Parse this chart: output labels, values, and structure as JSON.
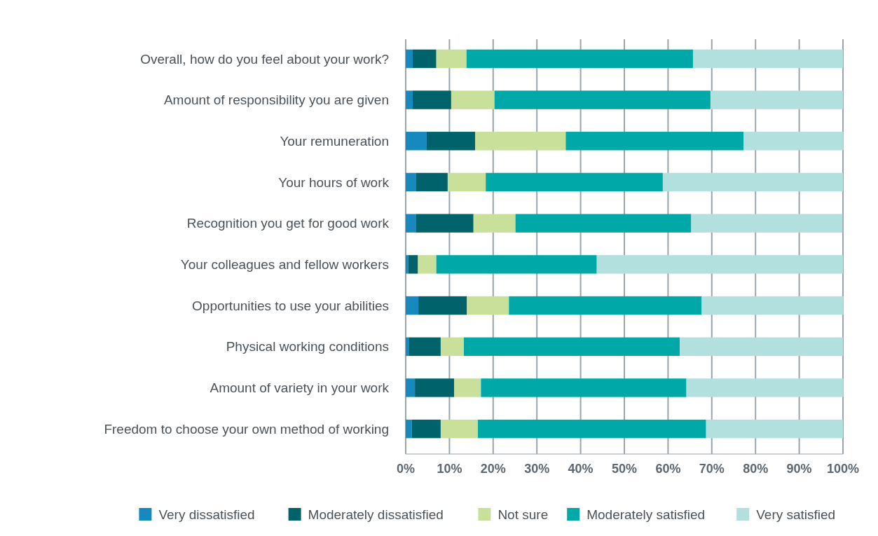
{
  "chart_data": {
    "type": "bar",
    "orientation": "horizontal",
    "stacked": true,
    "categories": [
      "Overall, how do you feel about your work?",
      "Amount of responsibility you are given",
      "Your remuneration",
      "Your hours of work",
      "Recognition you get for good work",
      "Your colleagues and fellow workers",
      "Opportunities to use your abilities",
      "Physical working conditions",
      "Amount of variety in your work",
      "Freedom to choose your own method of working"
    ],
    "series": [
      {
        "name": "Very dissatisfied",
        "color": "#1789bf",
        "values": [
          1.6,
          1.6,
          4.8,
          2.4,
          2.4,
          0.6,
          2.9,
          0.8,
          2.1,
          1.4
        ]
      },
      {
        "name": "Moderately dissatisfied",
        "color": "#00626b",
        "values": [
          5.4,
          8.8,
          11.1,
          7.2,
          13.1,
          2.2,
          11.1,
          7.2,
          9.0,
          6.6
        ]
      },
      {
        "name": "Not sure",
        "color": "#c9e09b",
        "values": [
          6.9,
          9.9,
          20.7,
          8.7,
          9.6,
          4.2,
          9.6,
          5.3,
          6.1,
          8.5
        ]
      },
      {
        "name": "Moderately satisfied",
        "color": "#00a9a8",
        "values": [
          51.8,
          49.4,
          40.7,
          40.5,
          40.2,
          36.7,
          44.1,
          49.4,
          47.0,
          52.2
        ]
      },
      {
        "name": "Very satisfied",
        "color": "#b1e0df",
        "values": [
          34.3,
          30.3,
          22.8,
          41.2,
          34.6,
          56.3,
          32.4,
          37.3,
          35.9,
          31.3
        ]
      }
    ],
    "xlim": [
      0,
      100
    ],
    "xticks": [
      {
        "value": 0,
        "label": "0%"
      },
      {
        "value": 10,
        "label": "10%"
      },
      {
        "value": 20,
        "label": "20%"
      },
      {
        "value": 30,
        "label": "30%"
      },
      {
        "value": 40,
        "label": "40%"
      },
      {
        "value": 50,
        "label": "50%"
      },
      {
        "value": 60,
        "label": "60%"
      },
      {
        "value": 70,
        "label": "70%"
      },
      {
        "value": 80,
        "label": "80%"
      },
      {
        "value": 90,
        "label": "90%"
      },
      {
        "value": 100,
        "label": "100%"
      }
    ],
    "grid": "x",
    "legend": "bottom"
  }
}
